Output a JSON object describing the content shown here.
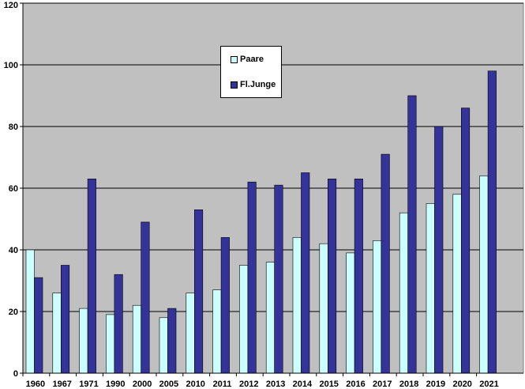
{
  "chart_data": {
    "type": "bar",
    "categories": [
      "1960",
      "1967",
      "1971",
      "1990",
      "2000",
      "2005",
      "2010",
      "2011",
      "2012",
      "2013",
      "2014",
      "2015",
      "2016",
      "2017",
      "2018",
      "2019",
      "2020",
      "2021"
    ],
    "series": [
      {
        "name": "Paare",
        "color": "#ccffff",
        "values": [
          40,
          26,
          21,
          19,
          22,
          18,
          26,
          27,
          35,
          36,
          44,
          42,
          39,
          43,
          52,
          55,
          58,
          64
        ]
      },
      {
        "name": "Fl.Junge",
        "color": "#333399",
        "values": [
          31,
          35,
          63,
          32,
          49,
          21,
          53,
          44,
          62,
          61,
          65,
          63,
          63,
          71,
          90,
          80,
          86,
          98
        ]
      }
    ],
    "title": "",
    "xlabel": "",
    "ylabel": "",
    "ylim": [
      0,
      120
    ],
    "yticks": [
      "0",
      "20",
      "40",
      "60",
      "80",
      "100",
      "120"
    ],
    "grid": true,
    "plot_background": "#c0c0c0",
    "legend_position": "top-center"
  }
}
